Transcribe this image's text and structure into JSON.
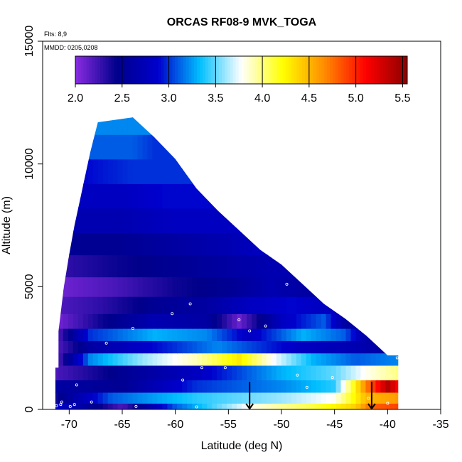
{
  "chart_data": {
    "type": "heatmap",
    "title": "ORCAS RF08-9 MVK_TOGA",
    "notes": [
      "Flts: 8,9",
      "MMDD: 0205,0208"
    ],
    "xlabel": "Latitude (deg N)",
    "ylabel": "Altitude (m)",
    "xlim": [
      -72.5,
      -35
    ],
    "ylim": [
      0,
      15000
    ],
    "xticks": [
      -70,
      -65,
      -60,
      -55,
      -50,
      -45,
      -40,
      -35
    ],
    "yticks": [
      0,
      5000,
      10000,
      15000
    ],
    "colorbar": {
      "ticks": [
        2.0,
        2.5,
        3.0,
        3.5,
        4.0,
        4.5,
        5.0,
        5.5
      ],
      "range": [
        2.0,
        5.55
      ],
      "colors": [
        "#8a2be2",
        "#00008b",
        "#0000cd",
        "#00bfff",
        "#ffffff",
        "#ffff00",
        "#ff8c00",
        "#ff0000",
        "#8b0000"
      ]
    },
    "curtain_outline": [
      [
        -71.3,
        0
      ],
      [
        -71.3,
        1700
      ],
      [
        -71,
        1700
      ],
      [
        -71,
        3200
      ],
      [
        -70.5,
        5000
      ],
      [
        -70,
        6300
      ],
      [
        -69.5,
        7500
      ],
      [
        -69,
        8500
      ],
      [
        -68.5,
        9500
      ],
      [
        -68,
        10500
      ],
      [
        -67.3,
        11700
      ],
      [
        -64,
        11900
      ],
      [
        -62,
        11100
      ],
      [
        -60,
        10200
      ],
      [
        -58,
        9000
      ],
      [
        -56,
        8100
      ],
      [
        -54,
        7300
      ],
      [
        -52,
        6500
      ],
      [
        -50,
        5900
      ],
      [
        -48,
        5100
      ],
      [
        -46,
        4300
      ],
      [
        -44,
        3700
      ],
      [
        -42,
        3000
      ],
      [
        -40,
        2200
      ],
      [
        -39,
        2200
      ],
      [
        -39,
        0
      ]
    ],
    "bands": [
      {
        "y0": 0,
        "y1": 250,
        "stops": [
          [
            -71.3,
            2.9
          ],
          [
            -65,
            2.2
          ],
          [
            -60,
            3.1
          ],
          [
            -53,
            3.8
          ],
          [
            -47,
            4.1
          ],
          [
            -43,
            4.4
          ],
          [
            -41.5,
            4.8
          ],
          [
            -39,
            4.9
          ]
        ]
      },
      {
        "y0": 250,
        "y1": 700,
        "stops": [
          [
            -71.3,
            2.4
          ],
          [
            -66,
            3.1
          ],
          [
            -58,
            3.4
          ],
          [
            -50,
            3.6
          ],
          [
            -45,
            3.8
          ],
          [
            -42,
            4.5
          ],
          [
            -39,
            4.6
          ]
        ]
      },
      {
        "y0": 700,
        "y1": 1200,
        "stops": [
          [
            -71.3,
            2.6
          ],
          [
            -65,
            2.5
          ],
          [
            -58,
            3.0
          ],
          [
            -50,
            3.2
          ],
          [
            -45,
            3.4
          ],
          [
            -42,
            4.7
          ],
          [
            -40,
            5.4
          ],
          [
            -39,
            5.1
          ]
        ]
      },
      {
        "y0": 1200,
        "y1": 1800,
        "stops": [
          [
            -71.3,
            2.2
          ],
          [
            -65,
            2.5
          ],
          [
            -58,
            2.8
          ],
          [
            -50,
            3.3
          ],
          [
            -45,
            3.5
          ],
          [
            -42,
            3.8
          ],
          [
            -39,
            4.0
          ]
        ]
      },
      {
        "y0": 1800,
        "y1": 2300,
        "stops": [
          [
            -71,
            2.2
          ],
          [
            -68,
            3.2
          ],
          [
            -63,
            3.6
          ],
          [
            -58,
            3.9
          ],
          [
            -54,
            4.3
          ],
          [
            -51,
            3.8
          ],
          [
            -47,
            3.3
          ],
          [
            -43,
            3.1
          ],
          [
            -39,
            3.2
          ]
        ]
      },
      {
        "y0": 2300,
        "y1": 2800,
        "stops": [
          [
            -71,
            2.2
          ],
          [
            -68,
            2.6
          ],
          [
            -62,
            2.9
          ],
          [
            -56,
            3.2
          ],
          [
            -52,
            3.0
          ],
          [
            -48,
            2.8
          ],
          [
            -43,
            2.7
          ],
          [
            -40,
            2.6
          ]
        ]
      },
      {
        "y0": 2800,
        "y1": 3300,
        "stops": [
          [
            -71,
            2.2
          ],
          [
            -68,
            3.0
          ],
          [
            -62,
            3.3
          ],
          [
            -57,
            3.2
          ],
          [
            -53,
            2.8
          ],
          [
            -48,
            3.3
          ],
          [
            -44,
            3.1
          ],
          [
            -42,
            2.6
          ]
        ]
      },
      {
        "y0": 3300,
        "y1": 3900,
        "stops": [
          [
            -70.8,
            2.1
          ],
          [
            -67,
            2.4
          ],
          [
            -62,
            2.7
          ],
          [
            -57,
            2.6
          ],
          [
            -54,
            2.1
          ],
          [
            -50,
            2.8
          ],
          [
            -46,
            3.1
          ],
          [
            -44,
            2.6
          ]
        ]
      },
      {
        "y0": 3900,
        "y1": 4600,
        "stops": [
          [
            -70.6,
            2.2
          ],
          [
            -67,
            2.3
          ],
          [
            -62,
            2.5
          ],
          [
            -57,
            2.6
          ],
          [
            -53,
            2.8
          ],
          [
            -49,
            2.9
          ],
          [
            -46,
            2.8
          ]
        ]
      },
      {
        "y0": 4600,
        "y1": 5400,
        "stops": [
          [
            -70.4,
            2.1
          ],
          [
            -66,
            2.2
          ],
          [
            -60,
            2.4
          ],
          [
            -55,
            2.5
          ],
          [
            -51,
            2.7
          ],
          [
            -48,
            2.6
          ]
        ]
      },
      {
        "y0": 5400,
        "y1": 6300,
        "stops": [
          [
            -70.1,
            2.3
          ],
          [
            -66,
            2.4
          ],
          [
            -60,
            2.5
          ],
          [
            -55,
            2.6
          ],
          [
            -51,
            2.7
          ]
        ]
      },
      {
        "y0": 6300,
        "y1": 7200,
        "stops": [
          [
            -69.7,
            2.5
          ],
          [
            -65,
            2.5
          ],
          [
            -60,
            2.6
          ],
          [
            -55,
            2.7
          ],
          [
            -52,
            2.8
          ]
        ]
      },
      {
        "y0": 7200,
        "y1": 8200,
        "stops": [
          [
            -69.3,
            2.7
          ],
          [
            -65,
            2.7
          ],
          [
            -60,
            2.8
          ],
          [
            -56,
            2.8
          ]
        ]
      },
      {
        "y0": 8200,
        "y1": 9200,
        "stops": [
          [
            -68.9,
            2.8
          ],
          [
            -65,
            2.8
          ],
          [
            -61,
            2.9
          ],
          [
            -58,
            2.9
          ]
        ]
      },
      {
        "y0": 9200,
        "y1": 10200,
        "stops": [
          [
            -68.4,
            2.9
          ],
          [
            -64,
            3.0
          ],
          [
            -60,
            3.0
          ]
        ]
      },
      {
        "y0": 10200,
        "y1": 11200,
        "stops": [
          [
            -67.9,
            3.1
          ],
          [
            -64,
            3.1
          ],
          [
            -62,
            3.0
          ]
        ]
      },
      {
        "y0": 11200,
        "y1": 11950,
        "stops": [
          [
            -67.5,
            3.2
          ],
          [
            -64,
            3.2
          ]
        ]
      }
    ],
    "sample_points": [
      [
        -71.2,
        150
      ],
      [
        -70.8,
        200
      ],
      [
        -69.9,
        120
      ],
      [
        -69.5,
        200
      ],
      [
        -69.3,
        1000
      ],
      [
        -67.9,
        300
      ],
      [
        -64,
        3300
      ],
      [
        -63.7,
        120
      ],
      [
        -60.3,
        3900
      ],
      [
        -59.3,
        1200
      ],
      [
        -58.6,
        4300
      ],
      [
        -57.5,
        1700
      ],
      [
        -55.3,
        1700
      ],
      [
        -54,
        3650
      ],
      [
        -53,
        3200
      ],
      [
        -49.7,
        6050
      ],
      [
        -49.5,
        5100
      ],
      [
        -48.5,
        1400
      ],
      [
        -47.6,
        900
      ],
      [
        -45.2,
        1300
      ],
      [
        -44.6,
        600
      ],
      [
        -42.5,
        1250
      ],
      [
        -41.8,
        450
      ],
      [
        -40,
        250
      ],
      [
        -39.7,
        1350
      ],
      [
        -39.1,
        2100
      ],
      [
        -64.8,
        11950
      ],
      [
        -70.7,
        300
      ],
      [
        -71.4,
        2200
      ],
      [
        -58,
        100
      ],
      [
        -66.5,
        2700
      ],
      [
        -51.5,
        3400
      ]
    ],
    "arrows": [
      -53,
      -41.5
    ]
  }
}
